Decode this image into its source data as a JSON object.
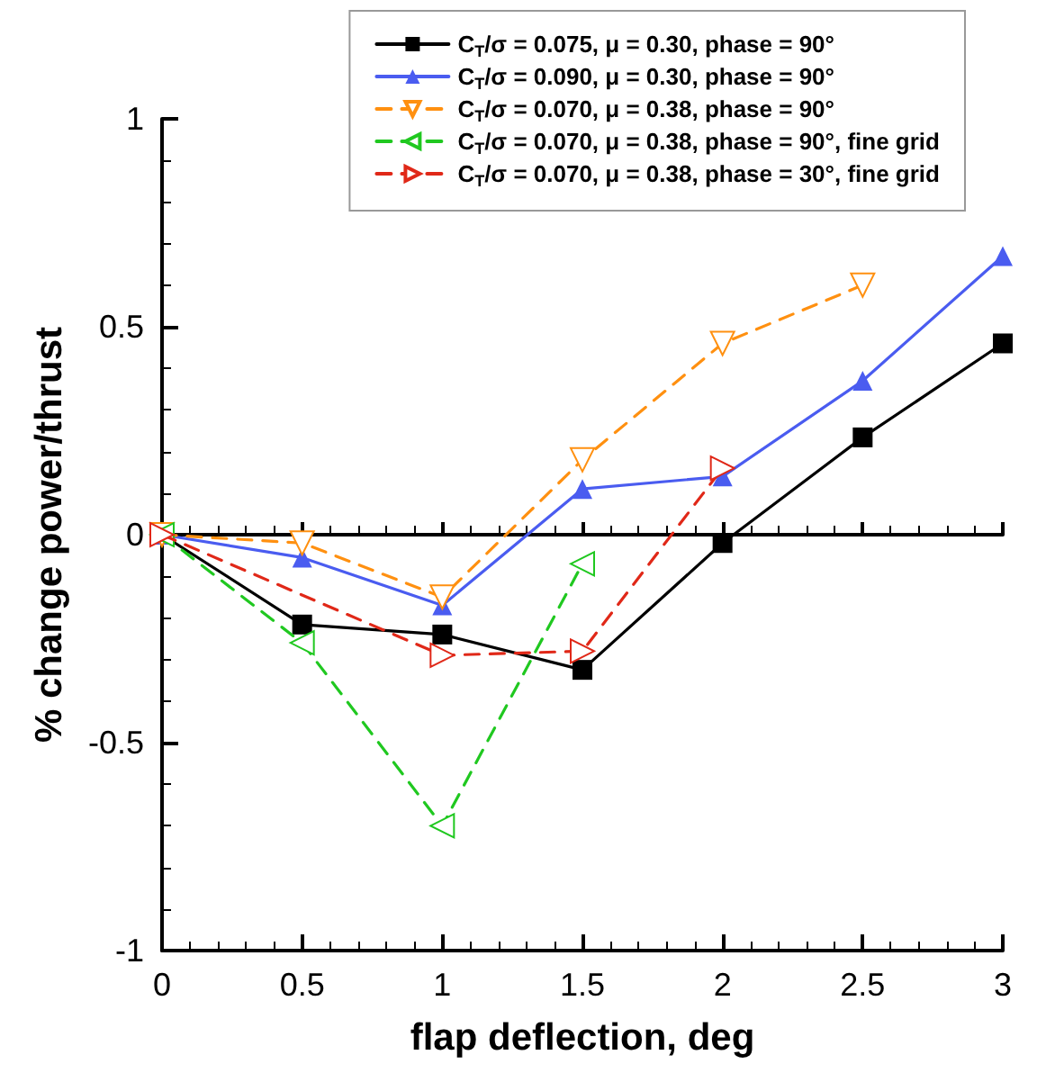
{
  "chart_data": {
    "type": "line",
    "xlabel": "flap deflection, deg",
    "ylabel": "% change power/thrust",
    "xlim": [
      0,
      3
    ],
    "xticks": [
      0,
      0.5,
      1,
      1.5,
      2,
      2.5,
      3
    ],
    "ylim": [
      -1,
      1
    ],
    "yticks": [
      -1,
      -0.5,
      0,
      0.5,
      1
    ],
    "legend": "top right",
    "series": [
      {
        "name": "C$_{T}$/σ = 0.075, μ = 0.30, phase = 90°",
        "color": "#000000",
        "marker": "square",
        "line_style": "solid",
        "x": [
          0,
          0.5,
          1,
          1.5,
          2,
          2.5,
          3
        ],
        "values": [
          0,
          -0.216,
          -0.24,
          -0.325,
          -0.02,
          0.234,
          0.46
        ]
      },
      {
        "name": "C$_{T}$/σ = 0.090, μ = 0.30, phase = 90°",
        "color": "#4a5cf0",
        "marker": "triangle",
        "line_style": "solid",
        "x": [
          0,
          0.5,
          1,
          1.5,
          2,
          2.5,
          3
        ],
        "values": [
          0,
          -0.055,
          -0.17,
          0.11,
          0.14,
          0.37,
          0.67
        ]
      },
      {
        "name": "C$_{T}$/σ = 0.070, μ = 0.38, phase = 90°",
        "color": "#ff9010",
        "marker": "triangle-down",
        "line_style": "dashed",
        "x": [
          0,
          0.5,
          1,
          1.5,
          2,
          2.5
        ],
        "values": [
          0,
          -0.02,
          -0.15,
          0.18,
          0.46,
          0.6
        ]
      },
      {
        "name": "C$_{T}$/σ = 0.070, μ = 0.38, phase = 90°, fine grid",
        "color": "#20c820",
        "marker": "triangle-left",
        "line_style": "dashed",
        "x": [
          0,
          0.5,
          1,
          1.5
        ],
        "values": [
          0,
          -0.26,
          -0.7,
          -0.07
        ]
      },
      {
        "name": "C$_{T}$/σ = 0.070, μ = 0.38, phase = 30°, fine grid",
        "color": "#e02818",
        "marker": "triangle-right",
        "line_style": "dashed",
        "x": [
          0,
          1,
          1.5,
          2
        ],
        "values": [
          0,
          -0.29,
          -0.28,
          0.16
        ]
      }
    ]
  }
}
